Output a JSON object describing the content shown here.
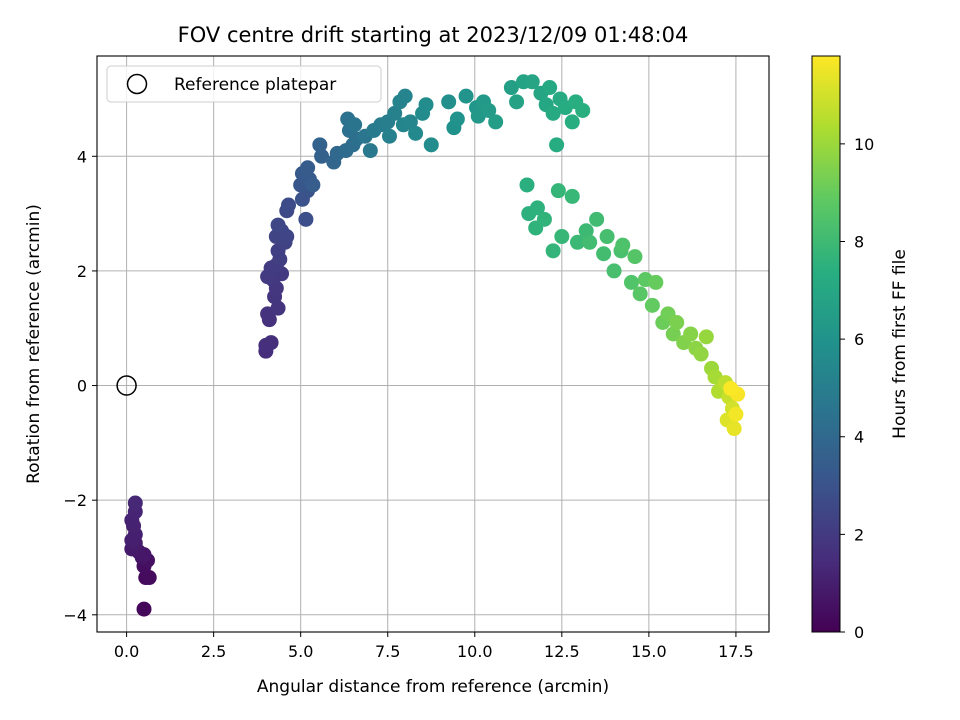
{
  "chart_data": {
    "type": "scatter",
    "title": "FOV centre drift starting at 2023/12/09 01:48:04",
    "xlabel": "Angular distance from reference (arcmin)",
    "ylabel": "Rotation from reference (arcmin)",
    "xlim": [
      -0.85,
      18.45
    ],
    "ylim": [
      -4.3,
      5.75
    ],
    "xticks": [
      0.0,
      2.5,
      5.0,
      7.5,
      10.0,
      12.5,
      15.0,
      17.5
    ],
    "xtick_labels": [
      "0.0",
      "2.5",
      "5.0",
      "7.5",
      "10.0",
      "12.5",
      "15.0",
      "17.5"
    ],
    "yticks": [
      -4,
      -2,
      0,
      2,
      4
    ],
    "ytick_labels": [
      "−4",
      "−2",
      "0",
      "2",
      "4"
    ],
    "grid": true,
    "legend": {
      "position": "top-left",
      "entries": [
        {
          "label": "Reference platepar",
          "marker": "open-circle",
          "color": "#000000"
        }
      ]
    },
    "reference_point": {
      "x": 0.0,
      "y": 0.0
    },
    "colorbar": {
      "label": "Hours from first FF file",
      "range": [
        0,
        11.8
      ],
      "ticks": [
        0,
        2,
        4,
        6,
        8,
        10
      ],
      "tick_labels": [
        "0",
        "2",
        "4",
        "6",
        "8",
        "10"
      ],
      "colormap": "viridis"
    },
    "series": [
      {
        "colormap": "viridis",
        "points": [
          [
            0.5,
            -3.9,
            0.2
          ],
          [
            0.55,
            -3.35,
            0.3
          ],
          [
            0.65,
            -3.35,
            0.35
          ],
          [
            0.5,
            -3.15,
            0.4
          ],
          [
            0.6,
            -3.05,
            0.5
          ],
          [
            0.45,
            -3.0,
            0.6
          ],
          [
            0.35,
            -2.9,
            0.7
          ],
          [
            0.5,
            -2.95,
            0.75
          ],
          [
            0.15,
            -2.85,
            0.85
          ],
          [
            0.25,
            -2.75,
            0.95
          ],
          [
            0.15,
            -2.7,
            1.0
          ],
          [
            0.25,
            -2.6,
            1.05
          ],
          [
            0.2,
            -2.45,
            1.1
          ],
          [
            0.15,
            -2.35,
            1.15
          ],
          [
            0.25,
            -2.2,
            1.2
          ],
          [
            0.25,
            -2.05,
            1.3
          ],
          [
            4.0,
            0.6,
            1.5
          ],
          [
            4.0,
            0.7,
            1.55
          ],
          [
            4.15,
            0.75,
            1.6
          ],
          [
            4.1,
            1.15,
            1.65
          ],
          [
            4.05,
            1.25,
            1.7
          ],
          [
            4.35,
            1.35,
            1.75
          ],
          [
            4.25,
            1.55,
            1.8
          ],
          [
            4.3,
            1.7,
            1.85
          ],
          [
            4.2,
            1.85,
            1.9
          ],
          [
            4.45,
            1.95,
            1.95
          ],
          [
            4.05,
            1.9,
            2.0
          ],
          [
            4.15,
            2.05,
            2.05
          ],
          [
            4.3,
            2.1,
            2.1
          ],
          [
            4.4,
            2.2,
            2.15
          ],
          [
            4.35,
            2.35,
            2.2
          ],
          [
            4.55,
            2.5,
            2.3
          ],
          [
            4.3,
            2.6,
            2.35
          ],
          [
            4.45,
            2.7,
            2.4
          ],
          [
            4.6,
            2.6,
            2.45
          ],
          [
            4.35,
            2.8,
            2.5
          ],
          [
            4.6,
            3.05,
            2.6
          ],
          [
            4.65,
            3.15,
            2.7
          ],
          [
            5.15,
            2.9,
            2.85
          ],
          [
            5.05,
            3.25,
            2.95
          ],
          [
            5.2,
            3.4,
            3.05
          ],
          [
            5.0,
            3.5,
            3.15
          ],
          [
            5.25,
            3.6,
            3.25
          ],
          [
            5.05,
            3.7,
            3.3
          ],
          [
            5.2,
            3.8,
            3.4
          ],
          [
            5.35,
            3.5,
            3.45
          ],
          [
            5.6,
            4.0,
            3.6
          ],
          [
            5.55,
            4.2,
            3.7
          ],
          [
            5.95,
            3.9,
            3.85
          ],
          [
            6.05,
            4.05,
            3.95
          ],
          [
            6.3,
            4.1,
            4.1
          ],
          [
            6.5,
            4.2,
            4.2
          ],
          [
            6.4,
            4.45,
            4.3
          ],
          [
            6.6,
            4.3,
            4.35
          ],
          [
            6.35,
            4.65,
            4.4
          ],
          [
            6.55,
            4.55,
            4.5
          ],
          [
            6.85,
            4.35,
            4.6
          ],
          [
            7.0,
            4.1,
            4.7
          ],
          [
            7.1,
            4.45,
            4.8
          ],
          [
            7.3,
            4.55,
            4.9
          ],
          [
            7.5,
            4.6,
            5.0
          ],
          [
            7.55,
            4.35,
            5.1
          ],
          [
            7.7,
            4.75,
            5.15
          ],
          [
            7.85,
            4.95,
            5.2
          ],
          [
            8.0,
            5.05,
            5.3
          ],
          [
            7.95,
            4.55,
            5.35
          ],
          [
            8.15,
            4.6,
            5.4
          ],
          [
            8.3,
            4.4,
            5.5
          ],
          [
            8.5,
            4.75,
            5.6
          ],
          [
            8.6,
            4.9,
            5.65
          ],
          [
            8.75,
            4.2,
            5.7
          ],
          [
            9.25,
            4.95,
            5.8
          ],
          [
            9.4,
            4.5,
            5.9
          ],
          [
            9.5,
            4.65,
            5.95
          ],
          [
            9.75,
            5.05,
            6.05
          ],
          [
            10.05,
            4.85,
            6.15
          ],
          [
            10.1,
            4.7,
            6.25
          ],
          [
            10.25,
            4.95,
            6.3
          ],
          [
            10.4,
            4.8,
            6.4
          ],
          [
            10.6,
            4.6,
            6.5
          ],
          [
            11.05,
            5.2,
            6.6
          ],
          [
            11.2,
            4.95,
            6.7
          ],
          [
            11.4,
            5.3,
            6.8
          ],
          [
            11.65,
            5.3,
            6.85
          ],
          [
            11.9,
            5.1,
            6.9
          ],
          [
            12.05,
            4.9,
            7.0
          ],
          [
            12.15,
            5.2,
            7.05
          ],
          [
            12.25,
            4.75,
            7.1
          ],
          [
            12.45,
            5.0,
            7.15
          ],
          [
            12.6,
            4.85,
            7.2
          ],
          [
            12.35,
            4.2,
            7.25
          ],
          [
            12.8,
            4.6,
            7.3
          ],
          [
            12.9,
            4.95,
            7.35
          ],
          [
            13.1,
            4.8,
            7.4
          ],
          [
            11.5,
            3.5,
            7.45
          ],
          [
            11.55,
            3.0,
            7.5
          ],
          [
            11.8,
            3.1,
            7.55
          ],
          [
            11.75,
            2.75,
            7.6
          ],
          [
            12.0,
            2.9,
            7.65
          ],
          [
            12.25,
            2.35,
            7.7
          ],
          [
            12.4,
            3.4,
            7.75
          ],
          [
            12.5,
            2.6,
            7.8
          ],
          [
            12.8,
            3.3,
            7.85
          ],
          [
            12.95,
            2.5,
            7.9
          ],
          [
            13.2,
            2.7,
            7.95
          ],
          [
            13.5,
            2.9,
            8.05
          ],
          [
            13.3,
            2.5,
            8.1
          ],
          [
            13.7,
            2.3,
            8.15
          ],
          [
            13.8,
            2.6,
            8.2
          ],
          [
            14.0,
            2.0,
            8.25
          ],
          [
            14.2,
            2.35,
            8.3
          ],
          [
            14.25,
            2.45,
            8.4
          ],
          [
            14.5,
            1.8,
            8.5
          ],
          [
            14.6,
            2.25,
            8.6
          ],
          [
            14.75,
            1.6,
            8.7
          ],
          [
            14.9,
            1.85,
            8.8
          ],
          [
            15.1,
            1.4,
            8.9
          ],
          [
            15.2,
            1.8,
            9.0
          ],
          [
            15.4,
            1.1,
            9.1
          ],
          [
            15.55,
            1.25,
            9.2
          ],
          [
            15.7,
            0.9,
            9.3
          ],
          [
            15.8,
            1.1,
            9.4
          ],
          [
            16.0,
            0.75,
            9.5
          ],
          [
            16.2,
            0.9,
            9.6
          ],
          [
            16.35,
            0.65,
            9.7
          ],
          [
            16.5,
            0.55,
            9.8
          ],
          [
            16.65,
            0.85,
            9.9
          ],
          [
            16.8,
            0.3,
            10.0
          ],
          [
            16.9,
            0.15,
            10.2
          ],
          [
            17.0,
            -0.1,
            10.4
          ],
          [
            17.2,
            0.05,
            10.6
          ],
          [
            17.3,
            -0.2,
            10.8
          ],
          [
            17.4,
            -0.4,
            11.0
          ],
          [
            17.25,
            -0.6,
            11.2
          ],
          [
            17.45,
            -0.75,
            11.4
          ],
          [
            17.5,
            -0.5,
            11.6
          ],
          [
            17.55,
            -0.15,
            11.7
          ],
          [
            17.35,
            -0.05,
            11.75
          ]
        ]
      }
    ]
  }
}
